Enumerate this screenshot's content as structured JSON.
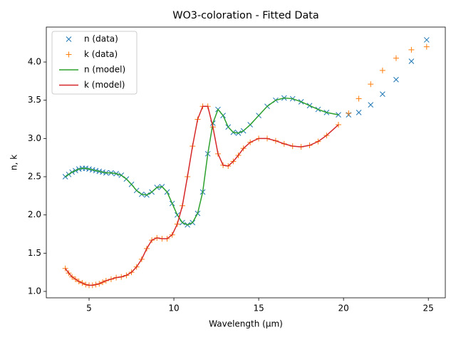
{
  "chart_data": {
    "type": "line",
    "title": "WO3-coloration - Fitted Data",
    "xlabel": "Wavelength (μm)",
    "ylabel": "n, k",
    "xlim": [
      2.48,
      26.0
    ],
    "ylim": [
      0.916,
      4.457
    ],
    "xticks": [
      5,
      10,
      15,
      20,
      25
    ],
    "yticks": [
      {
        "value": 1,
        "label": "1.0"
      },
      {
        "value": 1.5,
        "label": "1.5"
      },
      {
        "value": 2,
        "label": "2.0"
      },
      {
        "value": 2.5,
        "label": "2.5"
      },
      {
        "value": 3,
        "label": "3.0"
      },
      {
        "value": 3.5,
        "label": "3.5"
      },
      {
        "value": 4,
        "label": "4.0"
      }
    ],
    "legend": "upper left",
    "series": [
      {
        "name": "n (data)",
        "color": "#1f77b4",
        "marker": "x",
        "x": [
          3.6,
          3.8,
          4.0,
          4.2,
          4.4,
          4.6,
          4.8,
          5.0,
          5.2,
          5.4,
          5.6,
          5.8,
          6.0,
          6.3,
          6.6,
          6.9,
          7.2,
          7.5,
          7.8,
          8.1,
          8.4,
          8.7,
          9.0,
          9.3,
          9.6,
          9.9,
          10.2,
          10.5,
          10.8,
          11.1,
          11.4,
          11.7,
          12.0,
          12.3,
          12.6,
          12.9,
          13.2,
          13.5,
          13.8,
          14.1,
          14.5,
          15.0,
          15.5,
          16.0,
          16.5,
          17.0,
          17.5,
          18.0,
          18.5,
          19.0,
          19.7,
          20.3,
          20.9,
          21.6,
          22.3,
          23.1,
          24.0,
          24.9
        ],
        "values": [
          2.5,
          2.53,
          2.56,
          2.58,
          2.6,
          2.61,
          2.61,
          2.6,
          2.59,
          2.58,
          2.57,
          2.56,
          2.55,
          2.55,
          2.54,
          2.52,
          2.47,
          2.4,
          2.32,
          2.27,
          2.26,
          2.3,
          2.36,
          2.37,
          2.3,
          2.15,
          2.0,
          1.9,
          1.87,
          1.9,
          2.02,
          2.3,
          2.8,
          3.2,
          3.38,
          3.3,
          3.15,
          3.08,
          3.07,
          3.1,
          3.18,
          3.3,
          3.42,
          3.5,
          3.53,
          3.52,
          3.48,
          3.43,
          3.38,
          3.34,
          3.31,
          3.31,
          3.34,
          3.44,
          3.58,
          3.77,
          4.01,
          4.29
        ]
      },
      {
        "name": "k (data)",
        "color": "#ff7f0e",
        "marker": "+",
        "x": [
          3.6,
          3.8,
          4.0,
          4.2,
          4.4,
          4.6,
          4.8,
          5.0,
          5.2,
          5.4,
          5.6,
          5.8,
          6.0,
          6.3,
          6.6,
          6.9,
          7.2,
          7.5,
          7.8,
          8.1,
          8.4,
          8.7,
          9.0,
          9.3,
          9.6,
          9.9,
          10.2,
          10.5,
          10.8,
          11.1,
          11.4,
          11.7,
          12.0,
          12.3,
          12.6,
          12.9,
          13.2,
          13.5,
          13.8,
          14.1,
          14.5,
          15.0,
          15.5,
          16.0,
          16.5,
          17.0,
          17.5,
          18.0,
          18.5,
          19.0,
          19.7,
          20.3,
          20.9,
          21.6,
          22.3,
          23.1,
          24.0,
          24.9
        ],
        "values": [
          1.3,
          1.24,
          1.19,
          1.16,
          1.13,
          1.11,
          1.09,
          1.08,
          1.08,
          1.09,
          1.1,
          1.12,
          1.14,
          1.16,
          1.18,
          1.19,
          1.21,
          1.25,
          1.32,
          1.42,
          1.56,
          1.67,
          1.7,
          1.69,
          1.69,
          1.74,
          1.88,
          2.12,
          2.5,
          2.9,
          3.25,
          3.42,
          3.42,
          3.15,
          2.8,
          2.65,
          2.64,
          2.7,
          2.78,
          2.87,
          2.95,
          3.0,
          3.0,
          2.97,
          2.93,
          2.9,
          2.89,
          2.91,
          2.96,
          3.04,
          3.18,
          3.33,
          3.52,
          3.71,
          3.89,
          4.05,
          4.16,
          4.2
        ]
      },
      {
        "name": "n (model)",
        "color": "#2ca02c",
        "linestyle": "solid",
        "x": [
          3.6,
          3.8,
          4.0,
          4.2,
          4.4,
          4.6,
          4.8,
          5.0,
          5.2,
          5.4,
          5.6,
          5.8,
          6.0,
          6.3,
          6.6,
          6.9,
          7.2,
          7.5,
          7.8,
          8.1,
          8.4,
          8.7,
          9.0,
          9.3,
          9.6,
          9.9,
          10.2,
          10.5,
          10.8,
          11.1,
          11.4,
          11.7,
          12.0,
          12.3,
          12.6,
          12.9,
          13.2,
          13.5,
          13.8,
          14.1,
          14.5,
          15.0,
          15.5,
          16.0,
          16.5,
          17.0,
          17.5,
          18.0,
          18.5,
          19.0,
          19.7
        ],
        "values": [
          2.5,
          2.53,
          2.56,
          2.58,
          2.6,
          2.61,
          2.61,
          2.6,
          2.59,
          2.58,
          2.57,
          2.56,
          2.55,
          2.55,
          2.54,
          2.52,
          2.47,
          2.4,
          2.32,
          2.27,
          2.26,
          2.3,
          2.36,
          2.37,
          2.3,
          2.15,
          2.0,
          1.9,
          1.87,
          1.9,
          2.02,
          2.3,
          2.8,
          3.2,
          3.38,
          3.3,
          3.15,
          3.08,
          3.07,
          3.1,
          3.18,
          3.3,
          3.42,
          3.5,
          3.53,
          3.52,
          3.48,
          3.43,
          3.38,
          3.34,
          3.31
        ]
      },
      {
        "name": "k (model)",
        "color": "#d62728",
        "linestyle": "solid",
        "x": [
          3.6,
          3.8,
          4.0,
          4.2,
          4.4,
          4.6,
          4.8,
          5.0,
          5.2,
          5.4,
          5.6,
          5.8,
          6.0,
          6.3,
          6.6,
          6.9,
          7.2,
          7.5,
          7.8,
          8.1,
          8.4,
          8.7,
          9.0,
          9.3,
          9.6,
          9.9,
          10.2,
          10.5,
          10.8,
          11.1,
          11.4,
          11.7,
          12.0,
          12.3,
          12.6,
          12.9,
          13.2,
          13.5,
          13.8,
          14.1,
          14.5,
          15.0,
          15.5,
          16.0,
          16.5,
          17.0,
          17.5,
          18.0,
          18.5,
          19.0,
          19.7
        ],
        "values": [
          1.3,
          1.24,
          1.19,
          1.16,
          1.13,
          1.11,
          1.09,
          1.08,
          1.08,
          1.09,
          1.1,
          1.12,
          1.14,
          1.16,
          1.18,
          1.19,
          1.21,
          1.25,
          1.32,
          1.42,
          1.56,
          1.67,
          1.7,
          1.69,
          1.69,
          1.74,
          1.88,
          2.12,
          2.5,
          2.9,
          3.25,
          3.42,
          3.42,
          3.15,
          2.8,
          2.65,
          2.64,
          2.7,
          2.78,
          2.87,
          2.95,
          3.0,
          3.0,
          2.97,
          2.93,
          2.9,
          2.89,
          2.91,
          2.96,
          3.04,
          3.18
        ]
      }
    ]
  }
}
